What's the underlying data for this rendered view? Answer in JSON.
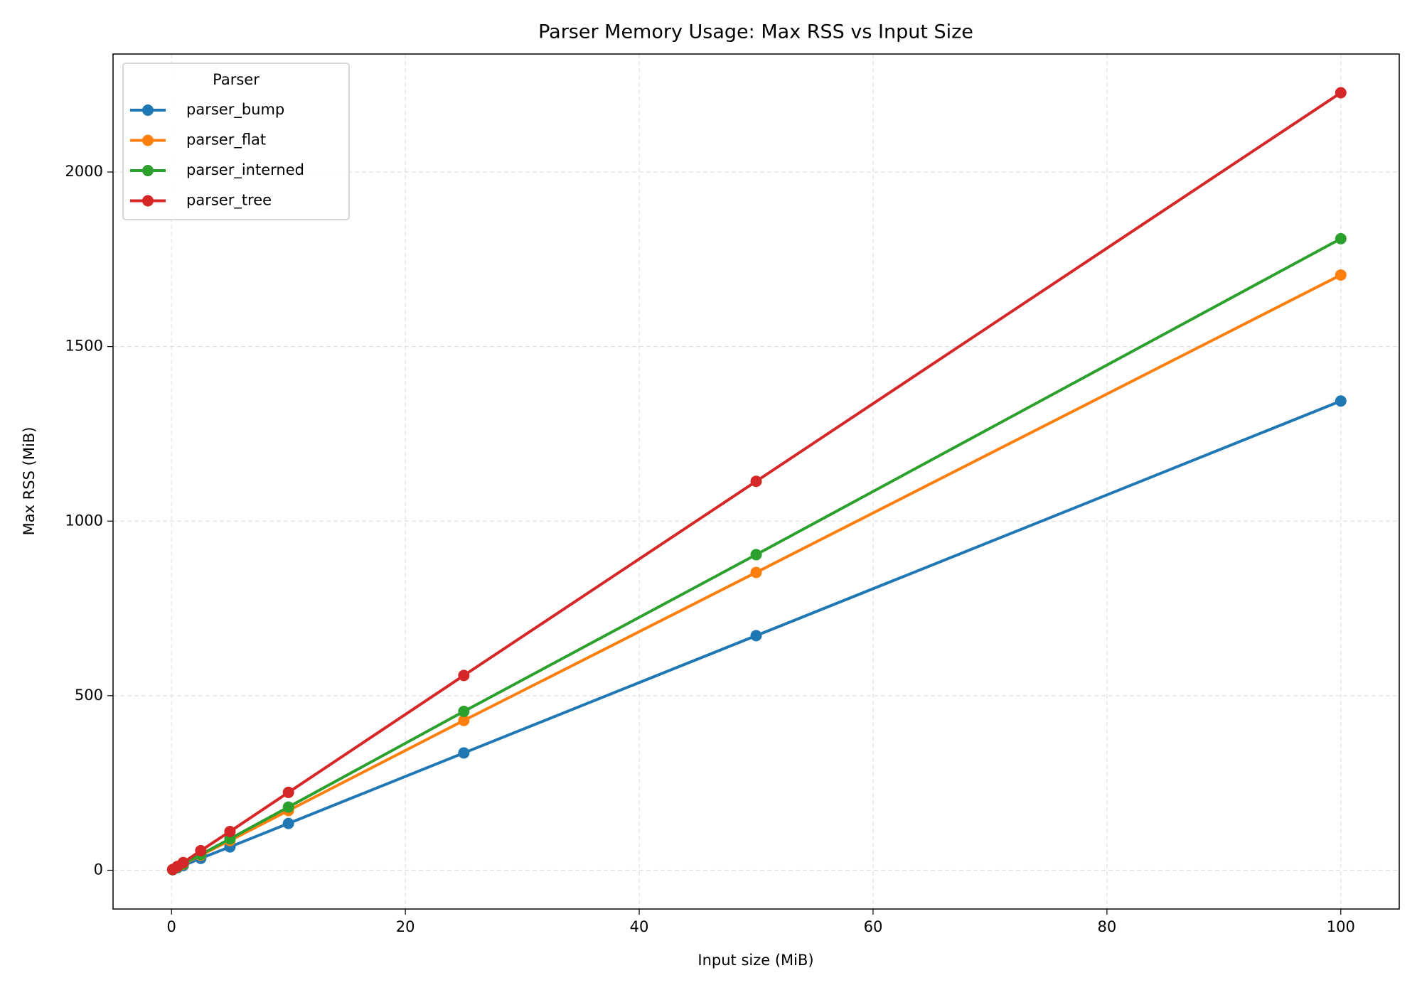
{
  "chart_data": {
    "type": "line",
    "title": "Parser Memory Usage: Max RSS vs Input Size",
    "x_label": "Input size (MiB)",
    "y_label": "Max RSS (MiB)",
    "x": [
      0.1,
      0.5,
      1,
      2.5,
      5,
      10,
      25,
      50,
      100
    ],
    "series": [
      {
        "name": "parser_bump",
        "color": "#1f77b4",
        "values": [
          1.5,
          7,
          13.5,
          34,
          67,
          134,
          336,
          672,
          1344
        ]
      },
      {
        "name": "parser_flat",
        "color": "#ff7f0e",
        "values": [
          1.7,
          8.5,
          17,
          43,
          85,
          171,
          429,
          853,
          1705
        ]
      },
      {
        "name": "parser_interned",
        "color": "#2ca02c",
        "values": [
          1.8,
          9,
          18,
          45,
          90,
          181,
          455,
          904,
          1809
        ]
      },
      {
        "name": "parser_tree",
        "color": "#d62728",
        "values": [
          2.2,
          11,
          22,
          56,
          111,
          223,
          558,
          1114,
          2227
        ]
      }
    ],
    "xlim": [
      -5,
      105
    ],
    "xticks": [
      0,
      20,
      40,
      60,
      80,
      100
    ],
    "ylim": [
      -111,
      2338
    ],
    "yticks": [
      0,
      500,
      1000,
      1500,
      2000
    ],
    "grid": true,
    "legend_title": "Parser",
    "legend_loc": "upper left"
  }
}
